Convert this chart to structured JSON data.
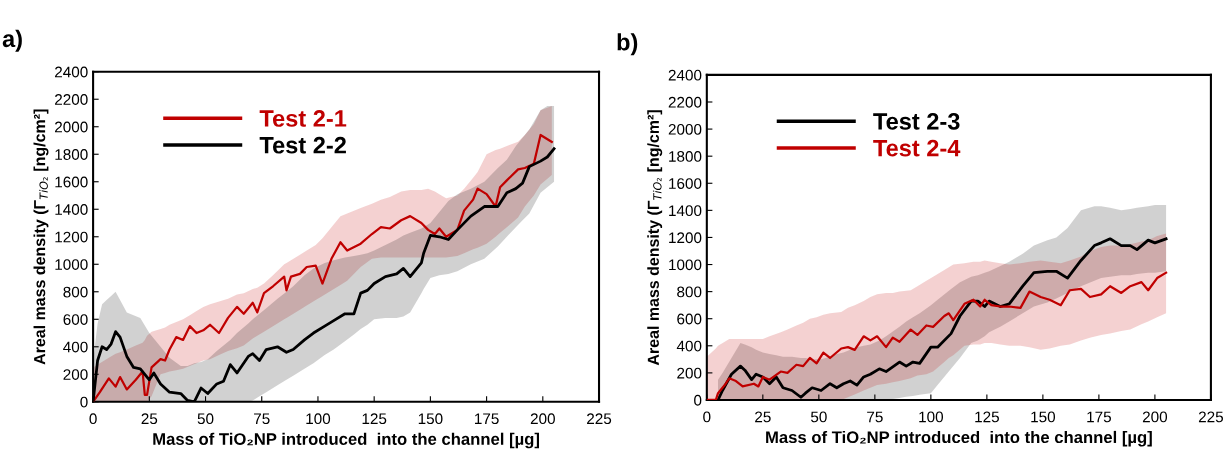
{
  "chart_data": [
    {
      "type": "line",
      "title": "a)",
      "xlabel": "Mass of TiO₂NP introduced  into the channel [µg]",
      "ylabel": "Areal mass density (Γ$_{TiO₂}$ [ng/cm²]",
      "xlim": [
        0,
        225
      ],
      "xticks": [
        0,
        25,
        50,
        75,
        100,
        125,
        150,
        175,
        200,
        225
      ],
      "ylim": [
        0,
        2400
      ],
      "yticks": [
        0,
        200,
        400,
        600,
        800,
        1000,
        1200,
        1400,
        1600,
        1800,
        2000,
        2200,
        2400
      ],
      "grid": false,
      "legend": "top left",
      "marker": "none",
      "line_style": "solid",
      "series": [
        {
          "name": "Test 2-1",
          "color": "#c00000",
          "x": [
            0,
            3,
            7,
            10,
            12,
            15,
            19,
            22,
            23,
            24,
            26,
            30,
            32,
            34,
            37,
            40,
            43,
            46,
            49,
            52,
            56,
            60,
            64,
            67,
            71,
            73,
            76,
            80,
            85,
            86,
            88,
            92,
            95,
            99,
            102,
            106,
            110,
            113,
            119,
            124,
            128,
            132,
            137,
            141,
            146,
            149,
            152,
            154,
            157,
            162,
            165,
            169,
            171,
            175,
            179,
            181,
            184,
            189,
            192,
            196,
            199,
            204
          ],
          "values": [
            0,
            70,
            170,
            110,
            180,
            90,
            160,
            220,
            50,
            50,
            250,
            310,
            300,
            380,
            470,
            450,
            550,
            500,
            520,
            560,
            500,
            610,
            690,
            640,
            720,
            650,
            790,
            840,
            910,
            810,
            910,
            930,
            980,
            990,
            860,
            1040,
            1160,
            1100,
            1150,
            1220,
            1270,
            1260,
            1320,
            1350,
            1300,
            1250,
            1220,
            1260,
            1200,
            1250,
            1390,
            1470,
            1550,
            1510,
            1420,
            1560,
            1610,
            1690,
            1700,
            1730,
            1940,
            1890
          ],
          "upper": [
            250,
            280,
            320,
            350,
            360,
            380,
            410,
            430,
            450,
            480,
            510,
            530,
            540,
            560,
            580,
            600,
            630,
            660,
            690,
            710,
            730,
            750,
            780,
            790,
            820,
            830,
            860,
            920,
            1000,
            1010,
            1030,
            1070,
            1100,
            1140,
            1190,
            1270,
            1350,
            1370,
            1410,
            1440,
            1470,
            1490,
            1530,
            1540,
            1540,
            1550,
            1530,
            1510,
            1480,
            1500,
            1550,
            1630,
            1670,
            1800,
            1830,
            1840,
            1860,
            1890,
            1940,
            2020,
            2120,
            2150
          ],
          "lower": [
            0,
            0,
            0,
            0,
            0,
            0,
            0,
            0,
            0,
            0,
            40,
            200,
            210,
            220,
            230,
            240,
            260,
            280,
            300,
            310,
            340,
            370,
            390,
            410,
            460,
            480,
            510,
            550,
            600,
            610,
            630,
            670,
            700,
            740,
            770,
            810,
            850,
            880,
            980,
            1040,
            1050,
            1050,
            1050,
            1050,
            1050,
            1050,
            1050,
            1050,
            1050,
            1060,
            1080,
            1110,
            1120,
            1150,
            1200,
            1230,
            1270,
            1340,
            1420,
            1500,
            1580,
            1650
          ]
        },
        {
          "name": "Test 2-2",
          "color": "#000000",
          "x": [
            0,
            2,
            4,
            6,
            8,
            10,
            12,
            15,
            18,
            21,
            25,
            27,
            30,
            34,
            39,
            42,
            45,
            48,
            51,
            55,
            58,
            61,
            64,
            69,
            71,
            74,
            77,
            82,
            86,
            89,
            94,
            98,
            103,
            107,
            112,
            116,
            119,
            122,
            125,
            130,
            135,
            138,
            141,
            146,
            147,
            150,
            154,
            158,
            162,
            168,
            174,
            180,
            184,
            188,
            191,
            194,
            199,
            202,
            205
          ],
          "values": [
            0,
            300,
            400,
            380,
            420,
            510,
            470,
            330,
            250,
            240,
            160,
            210,
            130,
            70,
            60,
            10,
            0,
            100,
            60,
            130,
            150,
            270,
            210,
            330,
            350,
            300,
            380,
            400,
            360,
            380,
            450,
            500,
            550,
            590,
            640,
            640,
            790,
            810,
            860,
            910,
            930,
            970,
            910,
            1010,
            1080,
            1210,
            1200,
            1180,
            1250,
            1350,
            1420,
            1420,
            1520,
            1550,
            1590,
            1710,
            1750,
            1780,
            1840
          ],
          "upper": [
            300,
            570,
            710,
            740,
            770,
            800,
            740,
            650,
            630,
            610,
            500,
            460,
            400,
            320,
            260,
            260,
            280,
            290,
            310,
            370,
            410,
            450,
            500,
            570,
            600,
            640,
            680,
            750,
            800,
            840,
            920,
            970,
            1010,
            1030,
            1050,
            1060,
            1070,
            1080,
            1100,
            1140,
            1180,
            1210,
            1230,
            1260,
            1270,
            1300,
            1380,
            1460,
            1510,
            1550,
            1600,
            1700,
            1760,
            1860,
            1920,
            1980,
            2120,
            2150,
            2150
          ],
          "lower": [
            0,
            0,
            0,
            0,
            0,
            0,
            0,
            0,
            0,
            0,
            0,
            0,
            0,
            0,
            0,
            0,
            0,
            0,
            0,
            0,
            0,
            0,
            0,
            0,
            10,
            40,
            70,
            120,
            160,
            190,
            240,
            280,
            340,
            380,
            440,
            490,
            530,
            560,
            600,
            610,
            610,
            620,
            650,
            790,
            820,
            900,
            920,
            930,
            950,
            1000,
            1040,
            1130,
            1200,
            1270,
            1320,
            1370,
            1520,
            1560,
            1600
          ]
        }
      ]
    },
    {
      "type": "line",
      "title": "b)",
      "xlabel": "Mass of TiO₂NP introduced  into the channel [µg]",
      "ylabel": "Areal mass density (Γ$_{TiO₂}$ [ng/cm²]",
      "xlim": [
        0,
        225
      ],
      "xticks": [
        0,
        25,
        50,
        75,
        100,
        125,
        150,
        175,
        200,
        225
      ],
      "ylim": [
        0,
        2400
      ],
      "yticks": [
        0,
        200,
        400,
        600,
        800,
        1000,
        1200,
        1400,
        1600,
        1800,
        2000,
        2200,
        2400
      ],
      "grid": false,
      "legend": "top left",
      "marker": "none",
      "line_style": "solid",
      "series": [
        {
          "name": "Test 2-3",
          "color": "#000000",
          "x": [
            5,
            7,
            11,
            15,
            17,
            20,
            22,
            25,
            28,
            31,
            34,
            38,
            42,
            44,
            47,
            51,
            55,
            58,
            61,
            64,
            67,
            70,
            73,
            77,
            80,
            86,
            89,
            92,
            95,
            100,
            103,
            109,
            113,
            118,
            121,
            124,
            126,
            131,
            135,
            141,
            146,
            152,
            156,
            161,
            167,
            173,
            176,
            180,
            185,
            189,
            192,
            197,
            200,
            205
          ],
          "values": [
            0,
            70,
            190,
            250,
            220,
            150,
            190,
            170,
            120,
            170,
            90,
            70,
            20,
            50,
            90,
            70,
            120,
            90,
            120,
            140,
            110,
            170,
            190,
            230,
            210,
            280,
            250,
            280,
            270,
            390,
            390,
            490,
            620,
            730,
            730,
            690,
            730,
            690,
            710,
            840,
            940,
            950,
            950,
            900,
            1030,
            1140,
            1160,
            1190,
            1140,
            1140,
            1110,
            1180,
            1160,
            1190
          ],
          "upper": [
            150,
            200,
            310,
            420,
            410,
            390,
            370,
            350,
            340,
            330,
            320,
            320,
            310,
            310,
            300,
            300,
            320,
            340,
            350,
            370,
            390,
            400,
            410,
            440,
            470,
            540,
            580,
            610,
            640,
            700,
            740,
            820,
            870,
            910,
            920,
            940,
            950,
            990,
            1020,
            1080,
            1140,
            1180,
            1200,
            1270,
            1400,
            1430,
            1430,
            1420,
            1400,
            1410,
            1420,
            1430,
            1440,
            1440
          ],
          "lower": [
            0,
            0,
            0,
            0,
            0,
            0,
            0,
            0,
            0,
            0,
            0,
            0,
            0,
            0,
            0,
            0,
            0,
            0,
            0,
            0,
            0,
            0,
            0,
            0,
            0,
            15,
            23,
            30,
            38,
            50,
            110,
            230,
            310,
            420,
            440,
            470,
            500,
            540,
            580,
            640,
            690,
            720,
            750,
            790,
            840,
            880,
            900,
            910,
            920,
            920,
            930,
            940,
            940,
            950
          ]
        },
        {
          "name": "Test 2-4",
          "color": "#c00000",
          "x": [
            0,
            4,
            5,
            8,
            10,
            13,
            16,
            21,
            23,
            25,
            28,
            33,
            36,
            40,
            43,
            46,
            49,
            52,
            55,
            60,
            63,
            66,
            70,
            73,
            76,
            80,
            83,
            86,
            91,
            94,
            98,
            101,
            106,
            108,
            110,
            115,
            119,
            122,
            124,
            127,
            131,
            135,
            140,
            144,
            149,
            153,
            158,
            162,
            167,
            171,
            176,
            180,
            185,
            189,
            194,
            197,
            201,
            205
          ],
          "values": [
            0,
            0,
            50,
            110,
            160,
            140,
            100,
            120,
            100,
            170,
            150,
            210,
            200,
            260,
            250,
            310,
            270,
            350,
            310,
            380,
            390,
            370,
            470,
            440,
            470,
            390,
            460,
            430,
            520,
            480,
            550,
            540,
            620,
            640,
            590,
            710,
            740,
            690,
            740,
            700,
            690,
            690,
            680,
            800,
            760,
            740,
            700,
            810,
            820,
            760,
            780,
            840,
            790,
            840,
            870,
            810,
            900,
            940
          ],
          "upper": [
            320,
            380,
            400,
            430,
            450,
            450,
            450,
            450,
            450,
            450,
            470,
            500,
            520,
            550,
            570,
            600,
            610,
            630,
            640,
            650,
            680,
            700,
            730,
            760,
            780,
            790,
            790,
            800,
            810,
            840,
            880,
            910,
            960,
            980,
            1000,
            1010,
            1020,
            1020,
            1030,
            1020,
            1010,
            1000,
            1010,
            1020,
            1030,
            1020,
            1010,
            1030,
            1060,
            1100,
            1130,
            1140,
            1140,
            1150,
            1170,
            1180,
            1210,
            1230
          ],
          "lower": [
            0,
            0,
            0,
            0,
            0,
            0,
            0,
            0,
            0,
            0,
            0,
            0,
            0,
            0,
            0,
            0,
            0,
            0,
            0,
            0,
            20,
            40,
            70,
            90,
            110,
            120,
            130,
            140,
            160,
            180,
            190,
            210,
            280,
            310,
            330,
            400,
            410,
            410,
            420,
            420,
            410,
            400,
            400,
            390,
            370,
            380,
            400,
            410,
            440,
            460,
            480,
            490,
            510,
            520,
            560,
            580,
            610,
            640
          ]
        }
      ]
    }
  ]
}
